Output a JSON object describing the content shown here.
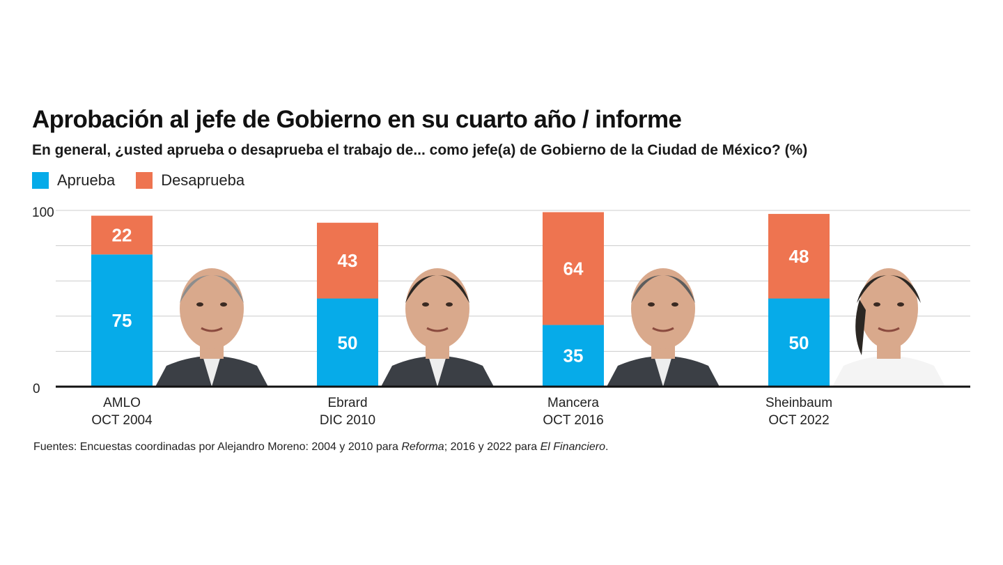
{
  "colors": {
    "aprueba": "#06ABE9",
    "desaprueba": "#EE7450",
    "grid": "#CCCCCC",
    "axis": "#111111",
    "bar_label": "#FFFFFF"
  },
  "chart_data": {
    "type": "bar",
    "stacked": true,
    "title": "Aprobación al jefe de Gobierno en su cuarto año / informe",
    "subtitle": "En general, ¿usted aprueba o desaprueba el trabajo de... como jefe(a) de Gobierno de la Ciudad de México?  (%)",
    "legend_placement": "top-left",
    "grid": true,
    "ylim": [
      0,
      100
    ],
    "yticks": [
      {
        "value": 0,
        "label": "0"
      },
      {
        "value": 100,
        "label": "100"
      }
    ],
    "ygrid_values": [
      20,
      40,
      60,
      80,
      100
    ],
    "categories": [
      {
        "name": "AMLO",
        "date": "OCT 2004",
        "photo_icon": "amlo-portrait-icon"
      },
      {
        "name": "Ebrard",
        "date": "DIC 2010",
        "photo_icon": "ebrard-portrait-icon"
      },
      {
        "name": "Mancera",
        "date": "OCT 2016",
        "photo_icon": "mancera-portrait-icon"
      },
      {
        "name": "Sheinbaum",
        "date": "OCT 2022",
        "photo_icon": "sheinbaum-portrait-icon"
      }
    ],
    "series": [
      {
        "name": "Aprueba",
        "color": "#06ABE9",
        "values": [
          75,
          50,
          35,
          50
        ]
      },
      {
        "name": "Desaprueba",
        "color": "#EE7450",
        "values": [
          22,
          43,
          64,
          48
        ]
      }
    ]
  },
  "footnote": {
    "prefix": "Fuentes: Encuestas coordinadas por Alejandro Moreno: 2004 y 2010 para ",
    "source1": "Reforma",
    "middle": "; 2016 y 2022 para ",
    "source2": "El Financiero",
    "suffix": "."
  }
}
